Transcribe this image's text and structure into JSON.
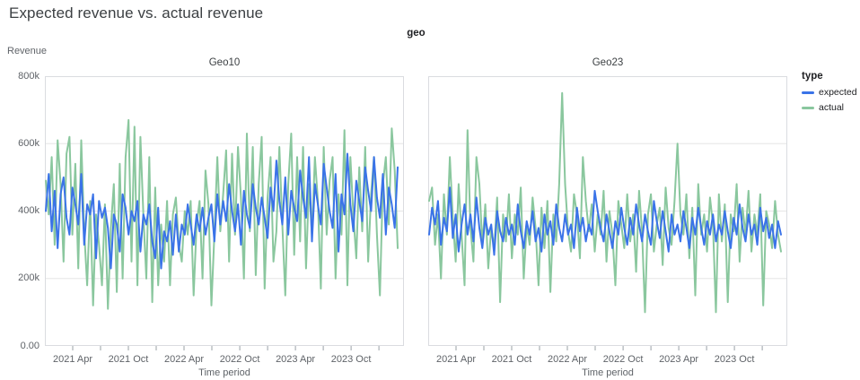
{
  "page": {
    "title": "Expected revenue vs. actual revenue"
  },
  "colors": {
    "expected_line": "#3a73e8",
    "actual_line": "#8ac79e",
    "grid": "#e6e6e6",
    "panel_border": "#dadce0",
    "tick_mark": "#9aa0a6",
    "axis_text": "#5f6368",
    "title_text": "#3c4043"
  },
  "chart_data": {
    "type": "line",
    "title": "Expected revenue vs. actual revenue",
    "facet_field": "geo",
    "y_axis": {
      "label": "Revenue",
      "lim": [
        0,
        800000
      ],
      "unit": "thousands",
      "ticks": [
        {
          "v": 0,
          "label": "0.00"
        },
        {
          "v": 200,
          "label": "200k"
        },
        {
          "v": 400,
          "label": "400k"
        },
        {
          "v": 600,
          "label": "600k"
        },
        {
          "v": 800,
          "label": "800k"
        }
      ]
    },
    "x_axis": {
      "label": "Time period",
      "span_months": 38.7,
      "ticks": [
        {
          "m": 3,
          "label": "2021 Apr"
        },
        {
          "m": 6,
          "label": ""
        },
        {
          "m": 9,
          "label": "2021 Oct"
        },
        {
          "m": 12,
          "label": ""
        },
        {
          "m": 15,
          "label": "2022 Apr"
        },
        {
          "m": 18,
          "label": ""
        },
        {
          "m": 21,
          "label": "2022 Oct"
        },
        {
          "m": 24,
          "label": ""
        },
        {
          "m": 27,
          "label": "2023 Apr"
        },
        {
          "m": 30,
          "label": ""
        },
        {
          "m": 33,
          "label": "2023 Oct"
        },
        {
          "m": 36,
          "label": ""
        }
      ]
    },
    "legend": {
      "title": "type",
      "entries": [
        {
          "label": "expected",
          "color": "#3a73e8"
        },
        {
          "label": "actual",
          "color": "#8ac79e"
        }
      ]
    },
    "panels": [
      {
        "title": "Geo10",
        "series": [
          {
            "name": "expected",
            "color": "#3a73e8",
            "values": [
              400,
              510,
              340,
              460,
              290,
              450,
              500,
              380,
              330,
              470,
              420,
              360,
              510,
              300,
              420,
              390,
              450,
              260,
              430,
              380,
              410,
              350,
              230,
              390,
              360,
              280,
              450,
              410,
              330,
              400,
              370,
              430,
              280,
              390,
              360,
              420,
              310,
              260,
              410,
              230,
              340,
              310,
              370,
              270,
              390,
              280,
              360,
              330,
              420,
              360,
              300,
              390,
              340,
              410,
              330,
              380,
              420,
              310,
              450,
              360,
              430,
              370,
              480,
              400,
              340,
              420,
              300,
              460,
              390,
              350,
              480,
              410,
              360,
              440,
              380,
              320,
              470,
              400,
              550,
              430,
              360,
              500,
              330,
              460,
              410,
              370,
              520,
              440,
              380,
              560,
              310,
              480,
              420,
              360,
              540,
              470,
              400,
              350,
              510,
              280,
              450,
              390,
              570,
              420,
              340,
              490,
              430,
              370,
              530,
              460,
              400,
              560,
              440,
              380,
              510,
              330,
              470,
              420,
              350,
              530
            ]
          },
          {
            "name": "actual",
            "color": "#8ac79e",
            "values": [
              490,
              390,
              560,
              300,
              610,
              480,
              250,
              570,
              620,
              330,
              540,
              230,
              610,
              340,
              180,
              430,
              120,
              390,
              300,
              180,
              420,
              110,
              350,
              480,
              160,
              540,
              200,
              560,
              670,
              250,
              650,
              180,
              620,
              390,
              200,
              560,
              130,
              470,
              180,
              360,
              250,
              430,
              180,
              390,
              440,
              300,
              250,
              400,
              330,
              430,
              150,
              360,
              430,
              200,
              520,
              420,
              120,
              330,
              560,
              340,
              450,
              580,
              250,
              570,
              330,
              590,
              440,
              200,
              630,
              340,
              590,
              210,
              480,
              620,
              170,
              440,
              560,
              250,
              340,
              590,
              360,
              150,
              480,
              630,
              270,
              560,
              310,
              590,
              230,
              480,
              330,
              560,
              430,
              170,
              590,
              330,
              490,
              560,
              200,
              450,
              330,
              640,
              180,
              560,
              390,
              260,
              530,
              340,
              590,
              250,
              450,
              560,
              330,
              150,
              480,
              560,
              360,
              645,
              520,
              290
            ]
          }
        ]
      },
      {
        "title": "Geo23",
        "series": [
          {
            "name": "expected",
            "color": "#3a73e8",
            "values": [
              330,
              410,
              360,
              430,
              300,
              380,
              340,
              470,
              320,
              390,
              280,
              360,
              420,
              330,
              390,
              310,
              440,
              350,
              290,
              380,
              330,
              360,
              270,
              400,
              340,
              310,
              380,
              330,
              360,
              300,
              420,
              340,
              290,
              370,
              330,
              400,
              310,
              350,
              280,
              390,
              330,
              370,
              300,
              420,
              350,
              310,
              390,
              330,
              360,
              290,
              410,
              340,
              380,
              310,
              360,
              330,
              460,
              400,
              350,
              310,
              390,
              340,
              290,
              370,
              330,
              410,
              350,
              300,
              380,
              330,
              420,
              360,
              310,
              390,
              340,
              300,
              430,
              370,
              320,
              400,
              340,
              280,
              390,
              330,
              360,
              310,
              400,
              350,
              290,
              380,
              330,
              410,
              350,
              300,
              370,
              330,
              390,
              310,
              360,
              330,
              400,
              340,
              290,
              380,
              330,
              420,
              350,
              310,
              390,
              330,
              360,
              300,
              410,
              340,
              380,
              320,
              360,
              290,
              370,
              330
            ]
          },
          {
            "name": "actual",
            "color": "#8ac79e",
            "values": [
              430,
              470,
              300,
              390,
              200,
              450,
              330,
              560,
              380,
              250,
              480,
              330,
              180,
              640,
              350,
              250,
              560,
              480,
              300,
              420,
              230,
              350,
              290,
              440,
              130,
              390,
              310,
              450,
              260,
              390,
              330,
              470,
              200,
              360,
              300,
              440,
              350,
              180,
              410,
              290,
              430,
              160,
              390,
              310,
              480,
              750,
              480,
              340,
              280,
              450,
              390,
              260,
              560,
              430,
              340,
              420,
              280,
              390,
              330,
              460,
              250,
              400,
              330,
              180,
              430,
              360,
              290,
              450,
              310,
              390,
              220,
              460,
              340,
              100,
              390,
              450,
              280,
              360,
              410,
              240,
              470,
              350,
              300,
              430,
              600,
              390,
              330,
              450,
              260,
              410,
              150,
              480,
              330,
              390,
              280,
              440,
              360,
              100,
              450,
              310,
              420,
              130,
              390,
              340,
              480,
              250,
              410,
              330,
              460,
              280,
              390,
              330,
              450,
              120,
              400,
              360,
              290,
              430,
              330,
              280
            ]
          }
        ]
      }
    ]
  }
}
